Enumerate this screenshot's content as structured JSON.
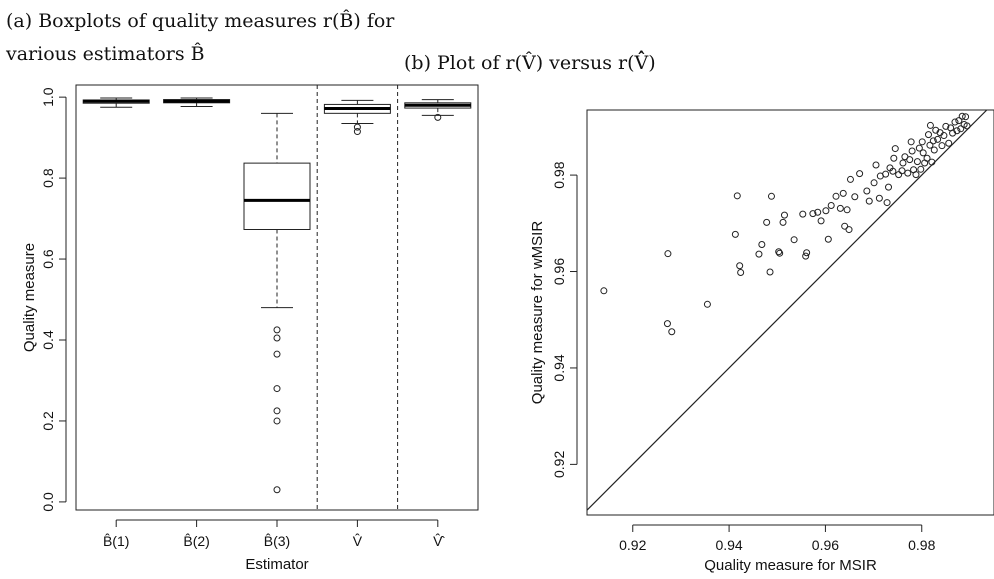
{
  "captions": {
    "a_line1": "(a) Boxplots of quality measures r(B̂) for",
    "a_line2": "various estimators B̂",
    "b": "(b) Plot of r(V̂) versus r(V̂̂)"
  },
  "chart_data": [
    {
      "type": "boxplot",
      "title": "(a) Boxplots of quality measures r(B̂) for various estimators B̂",
      "xlabel": "Estimator",
      "ylabel": "Quality measure",
      "ylim": [
        -0.02,
        1.03
      ],
      "yticks": [
        0.0,
        0.2,
        0.4,
        0.6,
        0.8,
        1.0
      ],
      "ytick_labels": [
        "0.0",
        "0.2",
        "0.4",
        "0.6",
        "0.8",
        "1.0"
      ],
      "categories": [
        "B̂(1)",
        "B̂(2)",
        "B̂(3)",
        "V̂",
        "V̂̂"
      ],
      "dashed_separators_after": [
        3,
        4
      ],
      "boxes": [
        {
          "whisker_low": 0.975,
          "q1": 0.985,
          "median": 0.99,
          "q3": 0.993,
          "whisker_high": 0.998,
          "outliers": []
        },
        {
          "whisker_low": 0.977,
          "q1": 0.986,
          "median": 0.99,
          "q3": 0.994,
          "whisker_high": 0.998,
          "outliers": []
        },
        {
          "whisker_low": 0.48,
          "q1": 0.673,
          "median": 0.745,
          "q3": 0.837,
          "whisker_high": 0.96,
          "outliers": [
            0.425,
            0.405,
            0.365,
            0.28,
            0.225,
            0.2,
            0.03
          ]
        },
        {
          "whisker_low": 0.935,
          "q1": 0.96,
          "median": 0.972,
          "q3": 0.982,
          "whisker_high": 0.992,
          "outliers": [
            0.926,
            0.915
          ]
        },
        {
          "whisker_low": 0.955,
          "q1": 0.973,
          "median": 0.98,
          "q3": 0.986,
          "whisker_high": 0.994,
          "outliers": [
            0.95
          ]
        }
      ]
    },
    {
      "type": "scatter",
      "title": "(b) Plot of r(V̂) versus r(V̂̂)",
      "xlabel": "Quality measure for MSIR",
      "ylabel": "Quality measure for wMSIR",
      "xlim": [
        0.9105,
        0.995
      ],
      "ylim": [
        0.9095,
        0.9935
      ],
      "xticks": [
        0.92,
        0.94,
        0.96,
        0.98
      ],
      "xtick_labels": [
        "0.92",
        "0.94",
        "0.96",
        "0.98"
      ],
      "yticks": [
        0.92,
        0.94,
        0.96,
        0.98
      ],
      "ytick_labels": [
        "0.92",
        "0.94",
        "0.96",
        "0.98"
      ],
      "reference_line": "y = x",
      "points": [
        [
          0.914,
          0.956
        ],
        [
          0.9273,
          0.9637
        ],
        [
          0.9272,
          0.9492
        ],
        [
          0.9281,
          0.9475
        ],
        [
          0.9355,
          0.9532
        ],
        [
          0.9417,
          0.9757
        ],
        [
          0.9413,
          0.9677
        ],
        [
          0.9422,
          0.9612
        ],
        [
          0.9424,
          0.9598
        ],
        [
          0.9468,
          0.9656
        ],
        [
          0.9462,
          0.9636
        ],
        [
          0.9478,
          0.9702
        ],
        [
          0.9485,
          0.9599
        ],
        [
          0.9488,
          0.9756
        ],
        [
          0.9503,
          0.9641
        ],
        [
          0.9505,
          0.9638
        ],
        [
          0.9512,
          0.9702
        ],
        [
          0.9515,
          0.9717
        ],
        [
          0.9535,
          0.9666
        ],
        [
          0.9553,
          0.9719
        ],
        [
          0.9559,
          0.9632
        ],
        [
          0.9561,
          0.9639
        ],
        [
          0.9574,
          0.972
        ],
        [
          0.9584,
          0.9723
        ],
        [
          0.9591,
          0.9705
        ],
        [
          0.9601,
          0.9726
        ],
        [
          0.9606,
          0.9667
        ],
        [
          0.9612,
          0.9737
        ],
        [
          0.9622,
          0.9756
        ],
        [
          0.9631,
          0.9731
        ],
        [
          0.9637,
          0.9762
        ],
        [
          0.964,
          0.9694
        ],
        [
          0.9649,
          0.9687
        ],
        [
          0.9645,
          0.9728
        ],
        [
          0.9652,
          0.9791
        ],
        [
          0.9661,
          0.9755
        ],
        [
          0.9671,
          0.9803
        ],
        [
          0.9686,
          0.9767
        ],
        [
          0.9691,
          0.9746
        ],
        [
          0.9701,
          0.9784
        ],
        [
          0.9705,
          0.9821
        ],
        [
          0.9712,
          0.9752
        ],
        [
          0.9714,
          0.9798
        ],
        [
          0.9725,
          0.9802
        ],
        [
          0.9728,
          0.9743
        ],
        [
          0.9731,
          0.9775
        ],
        [
          0.9734,
          0.9815
        ],
        [
          0.974,
          0.9808
        ],
        [
          0.9742,
          0.9835
        ],
        [
          0.9745,
          0.9855
        ],
        [
          0.9752,
          0.9801
        ],
        [
          0.9759,
          0.9809
        ],
        [
          0.9761,
          0.9825
        ],
        [
          0.9765,
          0.9838
        ],
        [
          0.9771,
          0.9804
        ],
        [
          0.9775,
          0.9832
        ],
        [
          0.9778,
          0.9869
        ],
        [
          0.978,
          0.985
        ],
        [
          0.9783,
          0.9811
        ],
        [
          0.9788,
          0.9801
        ],
        [
          0.9791,
          0.9828
        ],
        [
          0.9795,
          0.9856
        ],
        [
          0.9798,
          0.9812
        ],
        [
          0.9801,
          0.9869
        ],
        [
          0.9803,
          0.9846
        ],
        [
          0.9806,
          0.9825
        ],
        [
          0.9811,
          0.9835
        ],
        [
          0.9814,
          0.9884
        ],
        [
          0.9817,
          0.9862
        ],
        [
          0.9818,
          0.9903
        ],
        [
          0.9821,
          0.9827
        ],
        [
          0.9824,
          0.9871
        ],
        [
          0.9826,
          0.9852
        ],
        [
          0.9829,
          0.9893
        ],
        [
          0.9833,
          0.9874
        ],
        [
          0.9838,
          0.9888
        ],
        [
          0.9842,
          0.9861
        ],
        [
          0.9846,
          0.9882
        ],
        [
          0.985,
          0.9901
        ],
        [
          0.9856,
          0.9866
        ],
        [
          0.986,
          0.9898
        ],
        [
          0.9864,
          0.9887
        ],
        [
          0.9869,
          0.991
        ],
        [
          0.9873,
          0.9892
        ],
        [
          0.9877,
          0.9913
        ],
        [
          0.9881,
          0.9896
        ],
        [
          0.9884,
          0.9922
        ],
        [
          0.9888,
          0.9905
        ],
        [
          0.9891,
          0.9921
        ],
        [
          0.9894,
          0.9902
        ]
      ]
    }
  ]
}
